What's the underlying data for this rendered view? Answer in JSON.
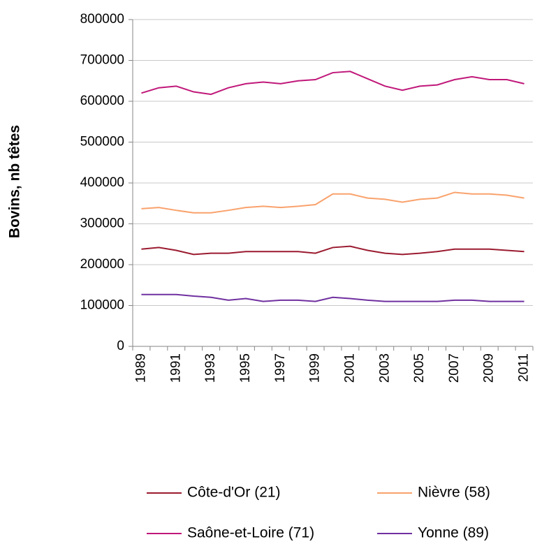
{
  "chart_data": {
    "type": "line",
    "y_label": "Bovins, nb têtes",
    "categories": [
      "1989",
      null,
      "1991",
      null,
      "1993",
      null,
      "1995",
      null,
      "1997",
      null,
      "1999",
      null,
      "2001",
      null,
      "2003",
      null,
      "2005",
      null,
      "2007",
      null,
      "2009",
      null,
      "2011"
    ],
    "series": [
      {
        "name": "Côte-d'Or (21)",
        "color": "#9b1b30",
        "values": [
          238000,
          242000,
          235000,
          225000,
          228000,
          228000,
          232000,
          232000,
          232000,
          232000,
          228000,
          242000,
          245000,
          235000,
          228000,
          225000,
          228000,
          232000,
          238000,
          238000,
          238000,
          235000,
          232000
        ]
      },
      {
        "name": "Nièvre (58)",
        "color": "#f9a26c",
        "values": [
          337000,
          340000,
          333000,
          327000,
          327000,
          333000,
          340000,
          343000,
          340000,
          343000,
          347000,
          373000,
          373000,
          363000,
          360000,
          353000,
          360000,
          363000,
          377000,
          373000,
          373000,
          370000,
          363000
        ]
      },
      {
        "name": "Saône-et-Loire (71)",
        "color": "#c0187a",
        "values": [
          620000,
          633000,
          637000,
          623000,
          617000,
          633000,
          643000,
          647000,
          643000,
          650000,
          653000,
          670000,
          673000,
          655000,
          637000,
          627000,
          637000,
          640000,
          653000,
          660000,
          653000,
          653000,
          643000
        ]
      },
      {
        "name": "Yonne (89)",
        "color": "#7030a0",
        "values": [
          127000,
          127000,
          127000,
          123000,
          120000,
          113000,
          117000,
          110000,
          113000,
          113000,
          110000,
          120000,
          117000,
          113000,
          110000,
          110000,
          110000,
          110000,
          113000,
          113000,
          110000,
          110000,
          110000
        ]
      }
    ],
    "ylim": [
      0,
      800000
    ],
    "yticks": [
      0,
      100000,
      200000,
      300000,
      400000,
      500000,
      600000,
      700000,
      800000
    ],
    "grid": true,
    "legend": "bottom"
  }
}
